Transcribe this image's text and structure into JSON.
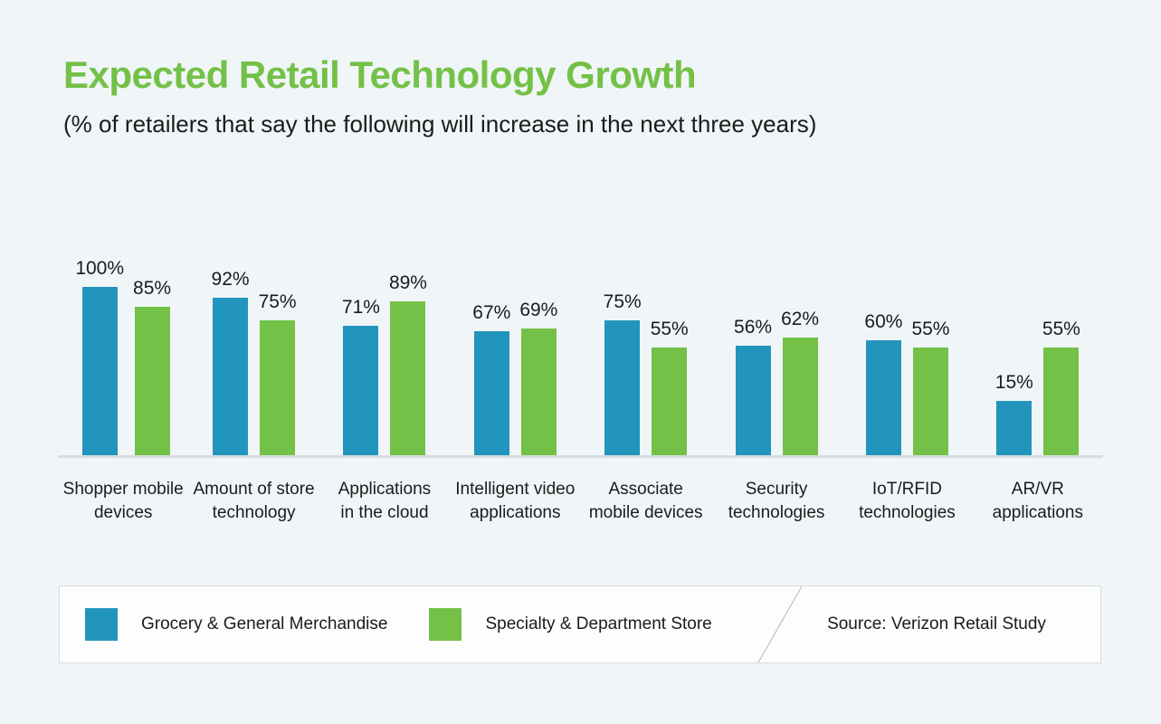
{
  "page": {
    "background_color": "#f0f5f8",
    "text_color": "#1b1b1b"
  },
  "header": {
    "title": "Expected Retail Technology Growth",
    "subtitle": "(% of retailers that say the following will increase in the next three years)",
    "title_color": "#73c146"
  },
  "chart_data": {
    "type": "bar",
    "title": "Expected Retail Technology Growth",
    "subtitle": "(% of retailers that say the following will increase in the next three years)",
    "value_suffix": "%",
    "ylim": [
      0,
      100
    ],
    "grid": false,
    "legend_position": "bottom",
    "categories": [
      "Shopper mobile devices",
      "Amount of store technology",
      "Applications in the cloud",
      "Intelligent video applications",
      "Associate mobile devices",
      "Security technologies",
      "IoT/RFID technologies",
      "AR/VR applications"
    ],
    "category_label_lines": [
      [
        "Shopper mobile",
        "devices"
      ],
      [
        "Amount of store",
        "technology"
      ],
      [
        "Applications",
        "in the cloud"
      ],
      [
        "Intelligent video",
        "applications"
      ],
      [
        "Associate",
        "mobile devices"
      ],
      [
        "Security",
        "technologies"
      ],
      [
        "IoT/RFID",
        "technologies"
      ],
      [
        "AR/VR",
        "applications"
      ]
    ],
    "series": [
      {
        "name": "Grocery & General Merchandise",
        "color": "#2295bd",
        "values": [
          100,
          92,
          71,
          67,
          75,
          56,
          60,
          15
        ]
      },
      {
        "name": "Specialty & Department Store",
        "color": "#73c146",
        "values": [
          85,
          75,
          89,
          69,
          55,
          62,
          55,
          55
        ]
      }
    ]
  },
  "axis": {
    "line_color": "#d8dcdf"
  },
  "legend": {
    "source_text": "Source: Verizon Retail Study",
    "divider_color": "#b9c2c8"
  }
}
